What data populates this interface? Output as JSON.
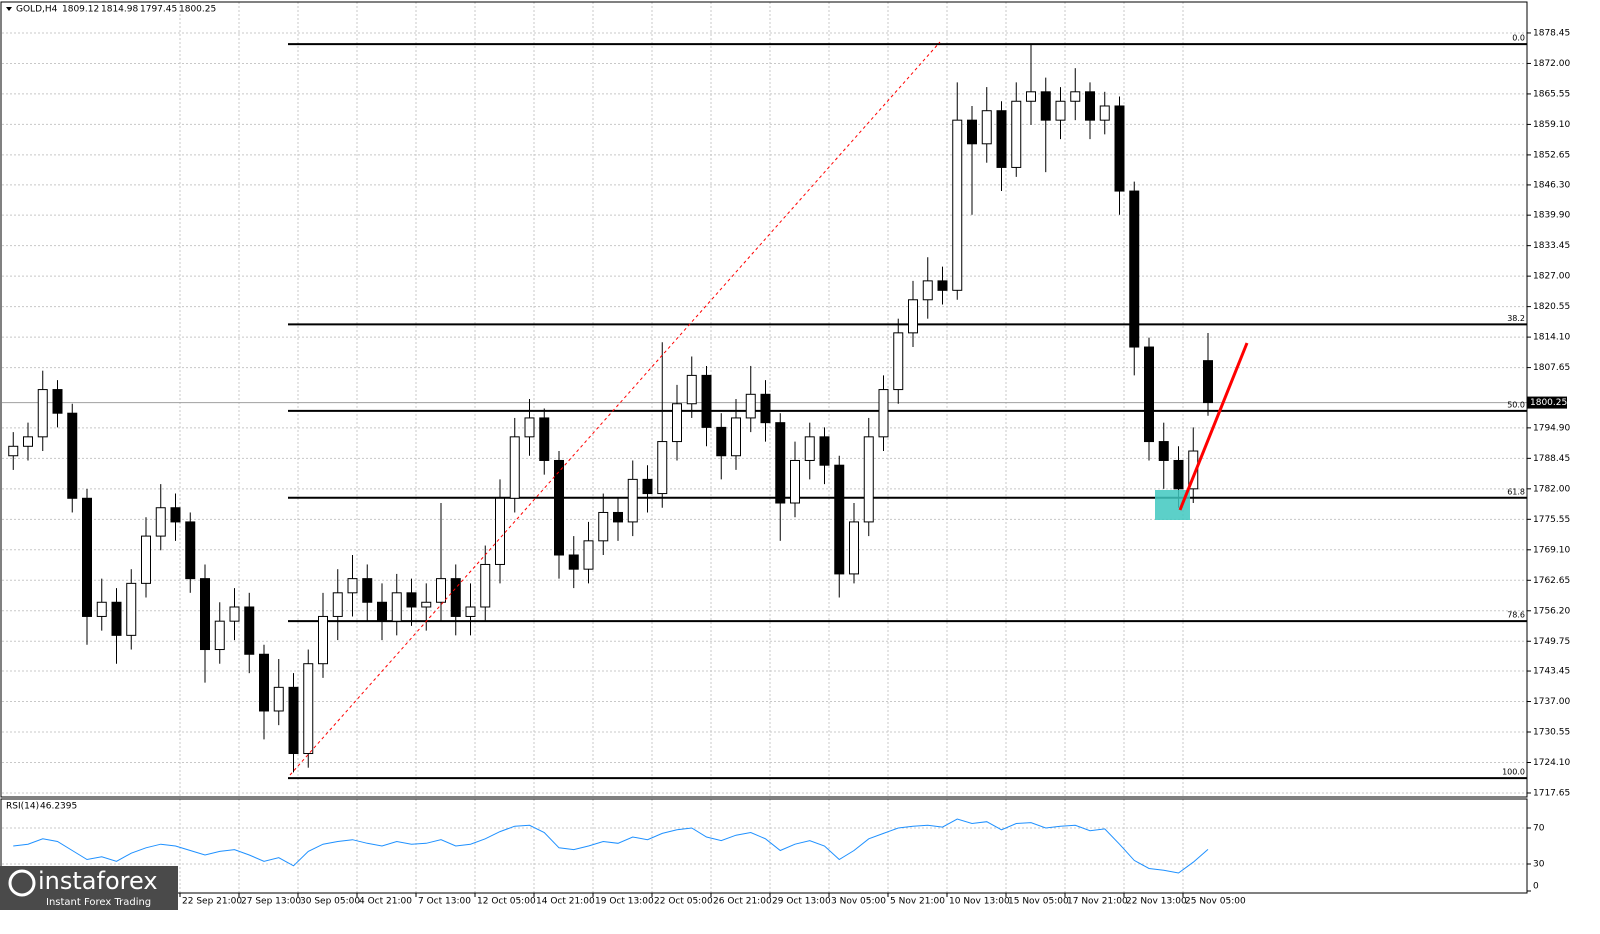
{
  "chart_data": [
    {
      "type": "candlestick",
      "title": "GOLD,H4",
      "categories": [
        null,
        null,
        null,
        null,
        null,
        null,
        null,
        null,
        null,
        null,
        null,
        null,
        null,
        "22 Sep 21:00",
        null,
        null,
        null,
        "27 Sep 13:00",
        null,
        null,
        null,
        "30 Sep 05:00",
        null,
        null,
        null,
        "4 Oct 21:00",
        null,
        null,
        null,
        "7 Oct 13:00",
        null,
        null,
        null,
        "12 Oct 05:00",
        null,
        null,
        null,
        "14 Oct 21:00",
        null,
        null,
        null,
        "19 Oct 13:00",
        null,
        null,
        null,
        "22 Oct 05:00",
        null,
        null,
        null,
        "26 Oct 21:00",
        null,
        null,
        null,
        "29 Oct 13:00",
        null,
        null,
        null,
        "3 Nov 05:00",
        null,
        null,
        null,
        "5 Nov 21:00",
        null,
        null,
        null,
        "10 Nov 13:00",
        null,
        null,
        null,
        "15 Nov 05:00",
        null,
        null,
        null,
        "17 Nov 21:00",
        null,
        null,
        null,
        "22 Nov 13:00",
        null,
        null,
        null,
        "25 Nov 05:00"
      ],
      "open": [
        1789,
        1791,
        1793,
        1803,
        1798,
        1780,
        1755,
        1758,
        1751,
        1762,
        1772,
        1778,
        1775,
        1763,
        1748,
        1754,
        1757,
        1747,
        1735,
        1740,
        1726,
        1745,
        1755,
        1760,
        1763,
        1758,
        1754,
        1760,
        1757,
        1758,
        1763,
        1755,
        1757,
        1766,
        1780,
        1793,
        1797,
        1788,
        1768,
        1765,
        1771,
        1777,
        1775,
        1784,
        1781,
        1792,
        1800,
        1806,
        1795,
        1789,
        1797,
        1802,
        1796,
        1779,
        1788,
        1793,
        1787,
        1764,
        1775,
        1793,
        1803,
        1815,
        1822,
        1826,
        1824,
        1860,
        1855,
        1862,
        1850,
        1864,
        1866,
        1860,
        1864,
        1866,
        1860,
        1863,
        1845,
        1812,
        1792,
        1788,
        1782,
        1809.12
      ],
      "high": [
        1794,
        1796,
        1807,
        1805,
        1800,
        1782,
        1763,
        1761,
        1765,
        1776,
        1783,
        1781,
        1777,
        1766,
        1758,
        1761,
        1760,
        1749,
        1746,
        1743,
        1748,
        1760,
        1765,
        1768,
        1766,
        1762,
        1764,
        1763,
        1762,
        1779,
        1766,
        1762,
        1770,
        1784,
        1797,
        1801,
        1799,
        1790,
        1772,
        1775,
        1781,
        1780,
        1788,
        1787,
        1813,
        1804,
        1810,
        1808,
        1798,
        1801,
        1808,
        1805,
        1798,
        1792,
        1796,
        1795,
        1789,
        1779,
        1797,
        1806,
        1818,
        1826,
        1831,
        1829,
        1868,
        1863,
        1867,
        1864,
        1868,
        1876,
        1869,
        1867,
        1871,
        1868,
        1866,
        1865,
        1847,
        1814,
        1796,
        1791,
        1795,
        1814.98
      ],
      "low": [
        1786,
        1788,
        1790,
        1795,
        1777,
        1749,
        1752,
        1745,
        1748,
        1759,
        1769,
        1771,
        1760,
        1741,
        1745,
        1750,
        1743,
        1729,
        1732,
        1722,
        1723,
        1742,
        1750,
        1755,
        1754,
        1750,
        1751,
        1753,
        1752,
        1754,
        1751,
        1751,
        1754,
        1762,
        1777,
        1789,
        1785,
        1763,
        1761,
        1762,
        1768,
        1771,
        1772,
        1777,
        1778,
        1788,
        1797,
        1791,
        1784,
        1786,
        1794,
        1792,
        1771,
        1776,
        1784,
        1783,
        1759,
        1762,
        1772,
        1790,
        1800,
        1812,
        1818,
        1821,
        1822,
        1840,
        1851,
        1845,
        1848,
        1859,
        1849,
        1856,
        1860,
        1856,
        1857,
        1840,
        1806,
        1788,
        1782,
        1778,
        1779,
        1797.45
      ],
      "close": [
        1791,
        1793,
        1803,
        1798,
        1780,
        1755,
        1758,
        1751,
        1762,
        1772,
        1778,
        1775,
        1763,
        1748,
        1754,
        1757,
        1747,
        1735,
        1740,
        1726,
        1745,
        1755,
        1760,
        1763,
        1758,
        1754,
        1760,
        1757,
        1758,
        1763,
        1755,
        1757,
        1766,
        1780,
        1793,
        1797,
        1788,
        1768,
        1765,
        1771,
        1777,
        1775,
        1784,
        1781,
        1792,
        1800,
        1806,
        1795,
        1789,
        1797,
        1802,
        1796,
        1779,
        1788,
        1793,
        1787,
        1764,
        1775,
        1793,
        1803,
        1815,
        1822,
        1826,
        1824,
        1860,
        1855,
        1862,
        1850,
        1864,
        1866,
        1860,
        1864,
        1866,
        1860,
        1863,
        1845,
        1812,
        1792,
        1788,
        1782,
        1790,
        1800.25
      ],
      "up_color": "#ffffff",
      "down_color": "#000000",
      "outline": "#000000",
      "ylim": [
        1716.8,
        1885.0
      ],
      "yticks": [
        1878.45,
        {
          "value": 1872,
          "label": "1872.00"
        },
        1865.55,
        {
          "value": 1859.1,
          "label": "1859.10"
        },
        1852.65,
        {
          "value": 1846.3,
          "label": "1846.30"
        },
        {
          "value": 1839.9,
          "label": "1839.90"
        },
        1833.45,
        {
          "value": 1827,
          "label": "1827.00"
        },
        1820.55,
        {
          "value": 1814.1,
          "label": "1814.10"
        },
        1807.65,
        {
          "value": 1794.9,
          "label": "1794.90"
        },
        1788.45,
        {
          "value": 1782,
          "label": "1782.00"
        },
        1775.55,
        {
          "value": 1769.1,
          "label": "1769.10"
        },
        1762.65,
        {
          "value": 1756.2,
          "label": "1756.20"
        },
        1749.75,
        1743.45,
        {
          "value": 1737,
          "label": "1737.00"
        },
        1730.55,
        {
          "value": 1724.1,
          "label": "1724.10"
        },
        1717.65
      ],
      "grid": true,
      "fib_levels": [
        {
          "label": "0.0",
          "value": 1876.1
        },
        {
          "label": "38.2",
          "value": 1816.8
        },
        {
          "label": "50.0",
          "value": 1798.5
        },
        {
          "label": "61.8",
          "value": 1780.1
        },
        {
          "label": "78.6",
          "value": 1754.0
        },
        {
          "label": "100.0",
          "value": 1720.8
        }
      ]
    },
    {
      "type": "line",
      "title": "RSI(14)",
      "values": [
        50,
        52,
        58,
        55,
        45,
        35,
        38,
        33,
        42,
        48,
        52,
        50,
        45,
        40,
        44,
        46,
        40,
        33,
        37,
        28,
        44,
        52,
        55,
        57,
        53,
        50,
        55,
        52,
        53,
        57,
        50,
        52,
        58,
        66,
        72,
        73,
        65,
        48,
        46,
        50,
        55,
        53,
        60,
        57,
        64,
        68,
        70,
        60,
        56,
        62,
        65,
        58,
        45,
        52,
        56,
        50,
        35,
        45,
        58,
        64,
        70,
        72,
        73,
        71,
        80,
        75,
        77,
        68,
        75,
        76,
        70,
        72,
        73,
        67,
        69,
        52,
        34,
        25,
        23,
        20,
        32,
        46.2395
      ],
      "color": "#1e90ff",
      "ylim": [
        0,
        100
      ],
      "yticks": [
        0,
        30,
        70
      ],
      "grid": true
    }
  ],
  "watermark": {
    "brand": "instaforex",
    "tagline": "Instant Forex Trading"
  }
}
